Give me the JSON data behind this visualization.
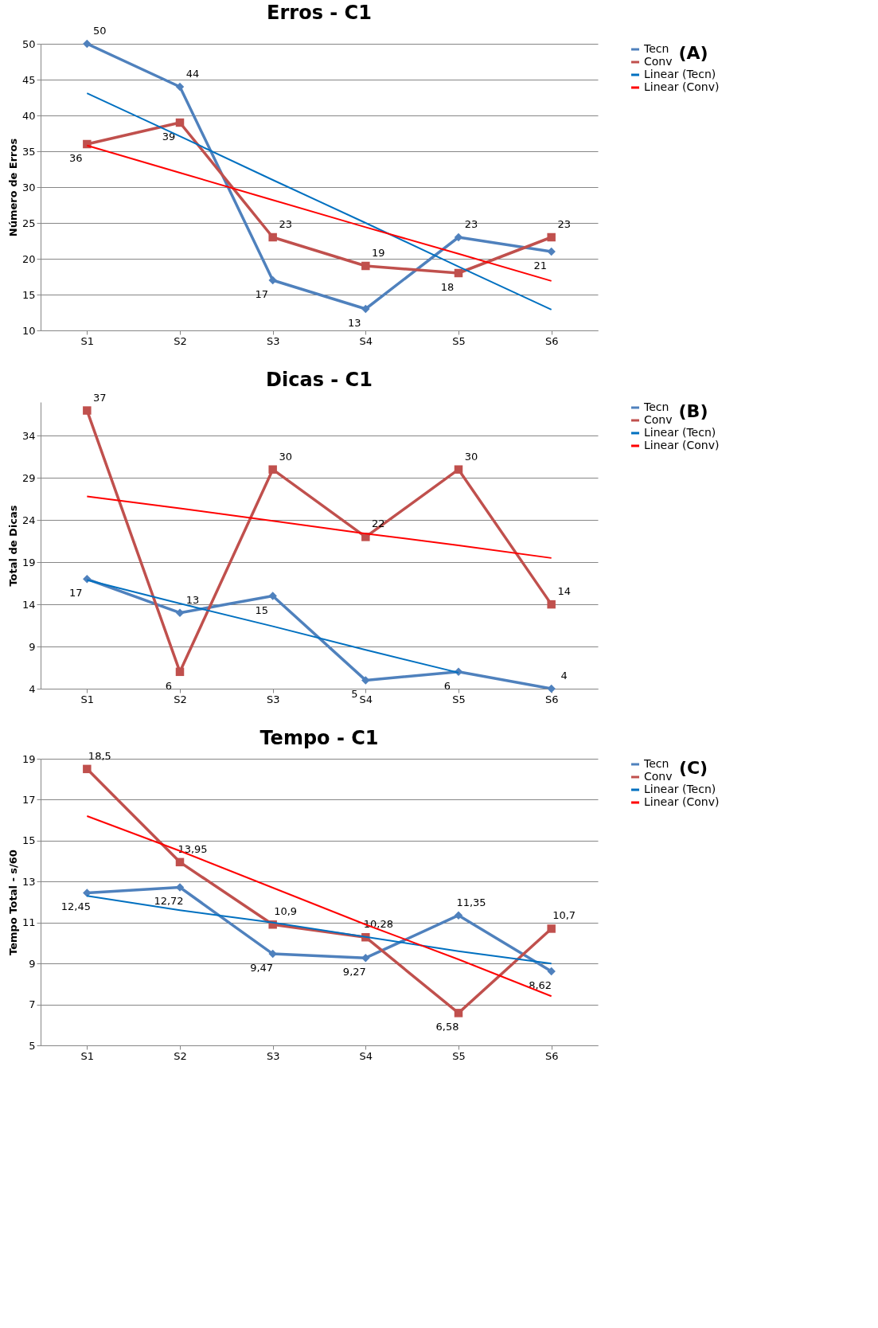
{
  "chart_data": [
    {
      "type": "line",
      "title": "Erros - C1",
      "ylabel": "Número de Erros",
      "categories": [
        "S1",
        "S2",
        "S3",
        "S4",
        "S5",
        "S6"
      ],
      "ylim": [
        10,
        50
      ],
      "yticks": [
        10,
        15,
        20,
        25,
        30,
        35,
        40,
        45,
        50
      ],
      "grid": "y",
      "legend": "right",
      "annotations": [
        "(A)"
      ],
      "series": [
        {
          "name": "Tecn",
          "color": "#4f81bd",
          "marker": "diamond",
          "values": [
            50,
            44,
            17,
            13,
            23,
            21
          ],
          "value_labels": [
            "50",
            "44",
            "17",
            "13",
            "23",
            "21"
          ]
        },
        {
          "name": "Conv",
          "color": "#c0504d",
          "marker": "square",
          "values": [
            36,
            39,
            23,
            19,
            18,
            23
          ],
          "value_labels": [
            "36",
            "39",
            "23",
            "19",
            "18",
            "23"
          ]
        },
        {
          "name": "Linear (Tecn)",
          "color": "#0070c0",
          "marker": "none",
          "values": [
            43.1,
            37.1,
            31.0,
            25.0,
            18.9,
            12.9
          ]
        },
        {
          "name": "Linear (Conv)",
          "color": "#ff0000",
          "marker": "none",
          "values": [
            35.8,
            32.0,
            28.2,
            24.4,
            20.7,
            16.9
          ]
        }
      ]
    },
    {
      "type": "line",
      "title": "Dicas - C1",
      "ylabel": "Total de Dicas",
      "categories": [
        "S1",
        "S2",
        "S3",
        "S4",
        "S5",
        "S6"
      ],
      "ylim": [
        4,
        38
      ],
      "yticks": [
        4,
        9,
        14,
        19,
        24,
        29,
        34
      ],
      "grid": "y",
      "legend": "right",
      "annotations": [
        "(B)"
      ],
      "series": [
        {
          "name": "Tecn",
          "color": "#4f81bd",
          "marker": "diamond",
          "values": [
            17,
            13,
            15,
            5,
            6,
            4
          ],
          "value_labels": [
            "17",
            "13",
            "15",
            "5",
            "6",
            "4"
          ]
        },
        {
          "name": "Conv",
          "color": "#c0504d",
          "marker": "square",
          "values": [
            37,
            6,
            30,
            22,
            30,
            14
          ],
          "value_labels": [
            "37",
            "6",
            "30",
            "22",
            "30",
            "14"
          ]
        },
        {
          "name": "Linear (Tecn)",
          "color": "#0070c0",
          "marker": "none",
          "values": [
            16.9,
            14.1,
            11.4,
            8.6,
            5.9,
            null
          ]
        },
        {
          "name": "Linear (Conv)",
          "color": "#ff0000",
          "marker": "none",
          "values": [
            26.8,
            25.4,
            23.9,
            22.4,
            21.0,
            19.5
          ]
        }
      ]
    },
    {
      "type": "line",
      "title": "Tempo - C1",
      "ylabel": "Tempo Total - s/60",
      "categories": [
        "S1",
        "S2",
        "S3",
        "S4",
        "S5",
        "S6"
      ],
      "ylim": [
        5,
        19
      ],
      "yticks": [
        5,
        7,
        9,
        11,
        13,
        15,
        17,
        19
      ],
      "grid": "y",
      "legend": "right",
      "annotations": [
        "(C)"
      ],
      "series": [
        {
          "name": "Tecn",
          "color": "#4f81bd",
          "marker": "diamond",
          "values": [
            12.45,
            12.72,
            9.47,
            9.27,
            11.35,
            8.62
          ],
          "value_labels": [
            "12,45",
            "12,72",
            "9,47",
            "9,27",
            "11,35",
            "8,62"
          ]
        },
        {
          "name": "Conv",
          "color": "#c0504d",
          "marker": "square",
          "values": [
            18.5,
            13.95,
            10.9,
            10.28,
            6.58,
            10.7
          ],
          "value_labels": [
            "18,5",
            "13,95",
            "10,9",
            "10,28",
            "6,58",
            "10,7"
          ]
        },
        {
          "name": "Linear (Tecn)",
          "color": "#0070c0",
          "marker": "none",
          "values": [
            12.3,
            11.6,
            11.0,
            10.3,
            9.6,
            9.0
          ]
        },
        {
          "name": "Linear (Conv)",
          "color": "#ff0000",
          "marker": "none",
          "values": [
            16.2,
            14.5,
            12.7,
            10.9,
            9.2,
            7.4
          ]
        }
      ]
    }
  ]
}
